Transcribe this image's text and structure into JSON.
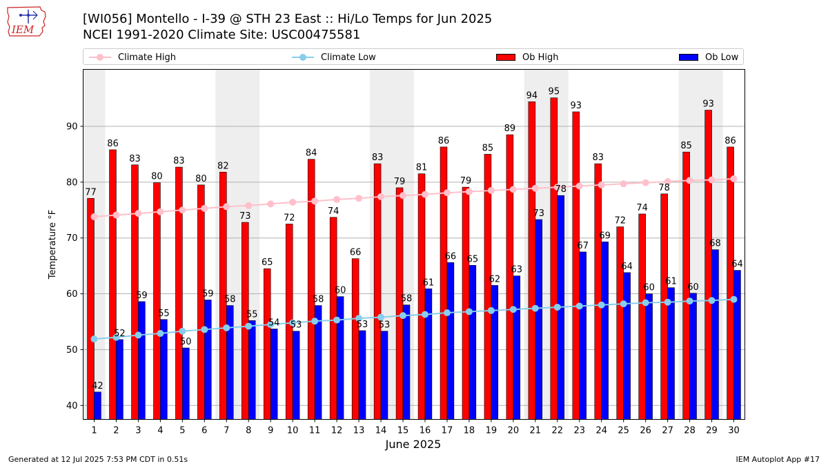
{
  "header": {
    "logo_text": "IEM",
    "title_line1": "[WI056] Montello - I-39 @ STH 23 East :: Hi/Lo Temps for Jun 2025",
    "title_line2": "NCEI 1991-2020 Climate Site: USC00475581"
  },
  "legend": {
    "climate_high": "Climate High",
    "climate_low": "Climate Low",
    "ob_high": "Ob High",
    "ob_low": "Ob Low"
  },
  "footer": {
    "generated": "Generated at 12 Jul 2025 7:53 PM CDT in 0.51s",
    "app": "IEM Autoplot App #17"
  },
  "colors": {
    "ob_high": "#ff0000",
    "ob_low": "#0000ff",
    "climate_high": "#ffc0cb",
    "climate_low": "#87ceeb",
    "weekend_shade": "#eeeeee",
    "grid": "#b0b0b0"
  },
  "chart_data": {
    "type": "bar",
    "xlabel": "June 2025",
    "ylabel": "Temperature °F",
    "ylim": [
      37.5,
      100.2
    ],
    "yticks": [
      40,
      50,
      60,
      70,
      80,
      90
    ],
    "grid": "horizontal",
    "legend_position": "top",
    "categories": [
      "1",
      "2",
      "3",
      "4",
      "5",
      "6",
      "7",
      "8",
      "9",
      "10",
      "11",
      "12",
      "13",
      "14",
      "15",
      "16",
      "17",
      "18",
      "19",
      "20",
      "21",
      "22",
      "23",
      "24",
      "25",
      "26",
      "27",
      "28",
      "29",
      "30"
    ],
    "shaded_days": [
      1,
      7,
      8,
      14,
      15,
      21,
      22,
      28,
      29
    ],
    "series": [
      {
        "name": "Ob High",
        "kind": "bar",
        "values": [
          77,
          86,
          83,
          80,
          83,
          80,
          82,
          73,
          65,
          72,
          84,
          74,
          66,
          83,
          79,
          81,
          86,
          79,
          85,
          89,
          94,
          95,
          93,
          83,
          72,
          74,
          78,
          85,
          93,
          86
        ],
        "plotted": [
          77.1,
          85.8,
          83.1,
          79.9,
          82.7,
          79.5,
          81.8,
          72.8,
          64.5,
          72.5,
          84.1,
          73.7,
          66.3,
          83.3,
          79.0,
          81.5,
          86.3,
          79.1,
          85.0,
          88.5,
          94.4,
          95.1,
          92.6,
          83.3,
          72.0,
          74.3,
          77.9,
          85.4,
          92.9,
          86.3
        ]
      },
      {
        "name": "Ob Low",
        "kind": "bar",
        "values": [
          42,
          52,
          59,
          55,
          50,
          59,
          58,
          55,
          54,
          53,
          58,
          60,
          53,
          53,
          58,
          61,
          66,
          65,
          62,
          63,
          73,
          78,
          67,
          69,
          64,
          60,
          61,
          60,
          68,
          64
        ],
        "plotted": [
          42.4,
          51.8,
          58.6,
          55.4,
          50.3,
          58.9,
          57.9,
          55.2,
          53.7,
          53.3,
          57.9,
          59.5,
          53.4,
          53.3,
          58.0,
          60.9,
          65.6,
          65.1,
          61.5,
          63.2,
          73.3,
          77.6,
          67.5,
          69.3,
          63.8,
          60.0,
          61.1,
          60.1,
          67.9,
          64.2
        ]
      },
      {
        "name": "Climate High",
        "kind": "line",
        "values": [
          73.8,
          74.1,
          74.4,
          74.7,
          75.0,
          75.3,
          75.6,
          75.8,
          76.1,
          76.4,
          76.6,
          76.9,
          77.1,
          77.4,
          77.6,
          77.8,
          78.1,
          78.3,
          78.5,
          78.7,
          78.9,
          79.1,
          79.3,
          79.5,
          79.7,
          79.9,
          80.1,
          80.3,
          80.4,
          80.6
        ]
      },
      {
        "name": "Climate Low",
        "kind": "line",
        "values": [
          51.9,
          52.2,
          52.6,
          52.9,
          53.3,
          53.6,
          53.9,
          54.2,
          54.5,
          54.8,
          55.1,
          55.3,
          55.6,
          55.8,
          56.1,
          56.3,
          56.6,
          56.8,
          57.0,
          57.2,
          57.4,
          57.6,
          57.8,
          58.0,
          58.2,
          58.4,
          58.5,
          58.7,
          58.8,
          59.0
        ]
      }
    ]
  }
}
